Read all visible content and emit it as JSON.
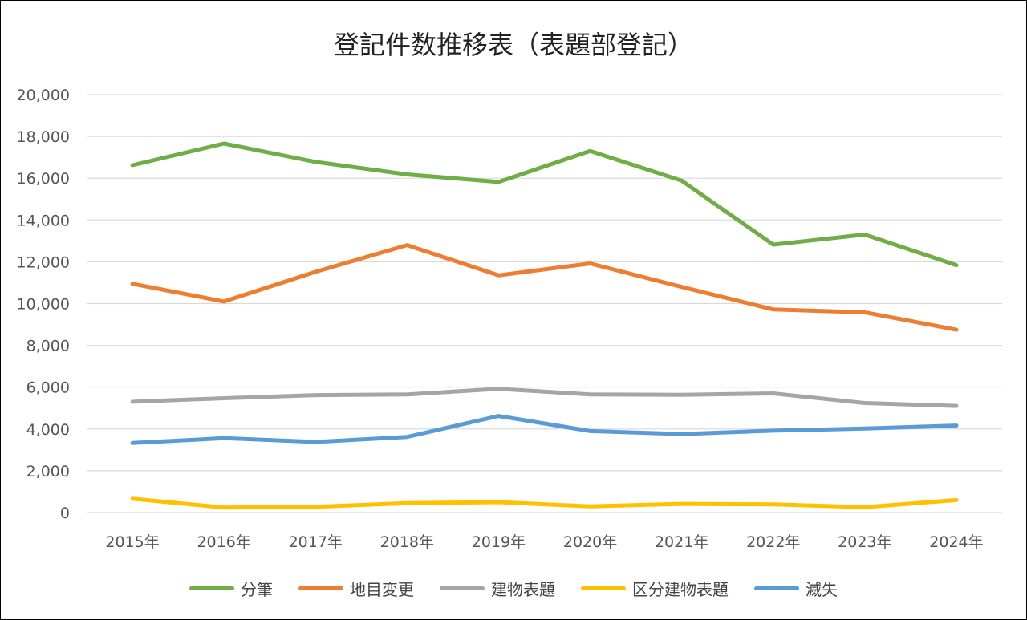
{
  "chart_data": {
    "type": "line",
    "title": "登記件数推移表（表題部登記）",
    "categories": [
      "2015年",
      "2016年",
      "2017年",
      "2018年",
      "2019年",
      "2020年",
      "2021年",
      "2022年",
      "2023年",
      "2024年"
    ],
    "ylim": [
      0,
      20000
    ],
    "yticks": [
      0,
      2000,
      4000,
      6000,
      8000,
      10000,
      12000,
      14000,
      16000,
      18000,
      20000
    ],
    "ytick_labels": [
      "0",
      "2,000",
      "4,000",
      "6,000",
      "8,000",
      "10,000",
      "12,000",
      "14,000",
      "16,000",
      "18,000",
      "20,000"
    ],
    "grid": true,
    "legend_position": "bottom",
    "series": [
      {
        "name": "分筆",
        "color": "#70AD47",
        "values": [
          16620,
          17660,
          16780,
          16180,
          15820,
          17300,
          15880,
          12820,
          13300,
          11840
        ]
      },
      {
        "name": "地目変更",
        "color": "#ED7D31",
        "values": [
          10950,
          10100,
          11520,
          12800,
          11350,
          11920,
          10800,
          9720,
          9580,
          8750
        ]
      },
      {
        "name": "建物表題",
        "color": "#A5A5A5",
        "values": [
          5300,
          5470,
          5620,
          5650,
          5920,
          5650,
          5630,
          5700,
          5240,
          5100
        ]
      },
      {
        "name": "区分建物表題",
        "color": "#FFC000",
        "values": [
          660,
          240,
          280,
          450,
          500,
          300,
          420,
          390,
          260,
          600
        ]
      },
      {
        "name": "滅失",
        "color": "#5B9BD5",
        "values": [
          3330,
          3560,
          3380,
          3620,
          4620,
          3900,
          3760,
          3920,
          4020,
          4160
        ]
      }
    ]
  }
}
